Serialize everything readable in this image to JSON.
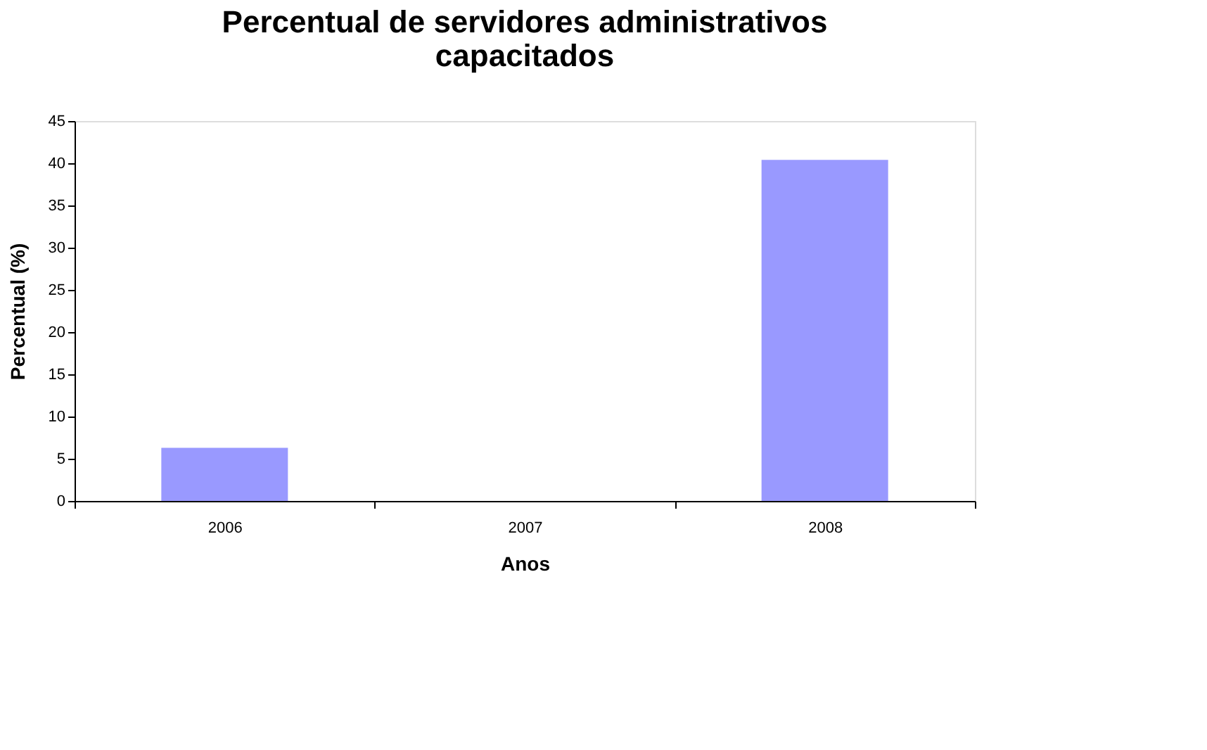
{
  "chart_data": {
    "type": "bar",
    "title": [
      "Percentual de servidores administrativos",
      "capacitados"
    ],
    "xlabel": "Anos",
    "ylabel": "Percentual (%)",
    "categories": [
      "2006",
      "2007",
      "2008"
    ],
    "values": [
      6.3,
      0,
      40.4
    ],
    "color": "#9999ff",
    "ylim": [
      0,
      45
    ],
    "yticks": [
      0,
      5,
      10,
      15,
      20,
      25,
      30,
      35,
      40,
      45
    ],
    "grid": false
  }
}
